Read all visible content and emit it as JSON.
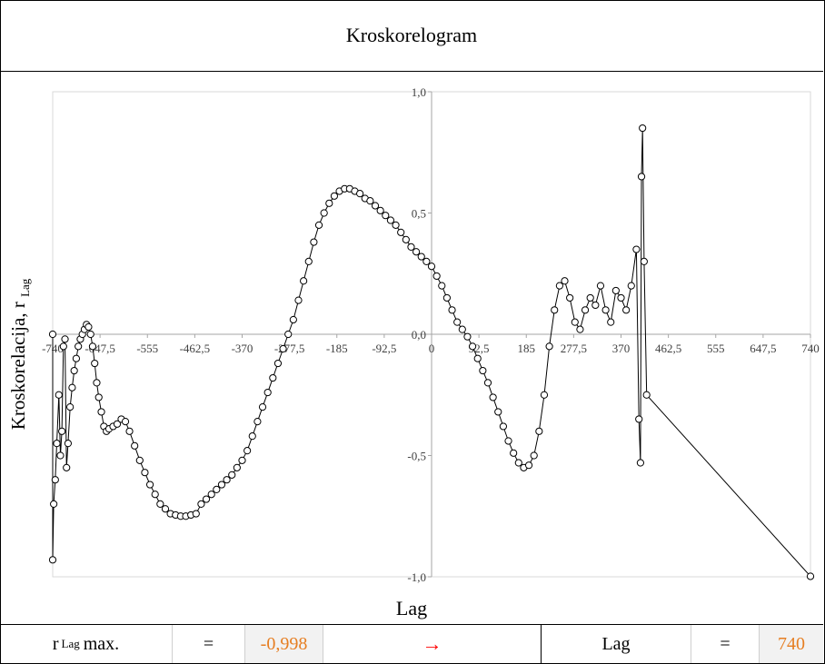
{
  "title": "Kroskorelogram",
  "ylabel": "Kroskorelacija, r",
  "ylabel_sub": "Lag",
  "xlabel": "Lag",
  "stats": {
    "r_label": "r",
    "r_sub": "Lag",
    "r_label_suffix": "max.",
    "eq1": "=",
    "r_value": "-0,998",
    "arrow": "→",
    "lag_label": "Lag",
    "eq2": "=",
    "lag_value": "740"
  },
  "colors": {
    "marker_fill": "#ffffff",
    "marker_stroke": "#000000",
    "line": "#000000",
    "value_text": "#e67e22",
    "arrow": "#ff0000",
    "grid_axis": "#a6a6a6"
  },
  "chart_data": {
    "type": "scatter",
    "title": "Kroskorelogram",
    "xlabel": "Lag",
    "ylabel": "Kroskorelacija, r Lag",
    "xlim": [
      -740,
      740
    ],
    "ylim": [
      -1.0,
      1.0
    ],
    "x_ticks": [
      "-740",
      "-647,5",
      "-555",
      "-462,5",
      "-370",
      "-277,5",
      "-185",
      "-92,5",
      "0",
      "92,5",
      "185",
      "277,5",
      "370",
      "462,5",
      "555",
      "647,5",
      "740"
    ],
    "y_ticks": [
      "-1,0",
      "-0,5",
      "0,0",
      "0,5",
      "1,0"
    ],
    "grid": false,
    "series": [
      {
        "points": [
          [
            -740,
            0.0
          ],
          [
            -740,
            -0.93
          ],
          [
            -738,
            -0.7
          ],
          [
            -735,
            -0.6
          ],
          [
            -732,
            -0.45
          ],
          [
            -728,
            -0.25
          ],
          [
            -725,
            -0.5
          ],
          [
            -722,
            -0.4
          ],
          [
            -719,
            -0.05
          ],
          [
            -716,
            -0.02
          ],
          [
            -713,
            -0.55
          ],
          [
            -710,
            -0.45
          ],
          [
            -706,
            -0.3
          ],
          [
            -702,
            -0.22
          ],
          [
            -698,
            -0.15
          ],
          [
            -694,
            -0.1
          ],
          [
            -690,
            -0.05
          ],
          [
            -686,
            -0.02
          ],
          [
            -682,
            0.0
          ],
          [
            -678,
            0.02
          ],
          [
            -674,
            0.04
          ],
          [
            -670,
            0.03
          ],
          [
            -666,
            0.0
          ],
          [
            -662,
            -0.05
          ],
          [
            -658,
            -0.12
          ],
          [
            -654,
            -0.2
          ],
          [
            -650,
            -0.26
          ],
          [
            -645,
            -0.32
          ],
          [
            -640,
            -0.38
          ],
          [
            -635,
            -0.4
          ],
          [
            -630,
            -0.39
          ],
          [
            -622,
            -0.38
          ],
          [
            -614,
            -0.37
          ],
          [
            -606,
            -0.35
          ],
          [
            -598,
            -0.36
          ],
          [
            -590,
            -0.4
          ],
          [
            -580,
            -0.46
          ],
          [
            -570,
            -0.52
          ],
          [
            -560,
            -0.57
          ],
          [
            -550,
            -0.62
          ],
          [
            -540,
            -0.66
          ],
          [
            -530,
            -0.7
          ],
          [
            -520,
            -0.72
          ],
          [
            -510,
            -0.74
          ],
          [
            -500,
            -0.745
          ],
          [
            -490,
            -0.75
          ],
          [
            -480,
            -0.75
          ],
          [
            -470,
            -0.745
          ],
          [
            -460,
            -0.74
          ],
          [
            -450,
            -0.7
          ],
          [
            -440,
            -0.68
          ],
          [
            -430,
            -0.66
          ],
          [
            -420,
            -0.64
          ],
          [
            -410,
            -0.62
          ],
          [
            -400,
            -0.6
          ],
          [
            -390,
            -0.58
          ],
          [
            -380,
            -0.55
          ],
          [
            -370,
            -0.52
          ],
          [
            -360,
            -0.48
          ],
          [
            -350,
            -0.42
          ],
          [
            -340,
            -0.36
          ],
          [
            -330,
            -0.3
          ],
          [
            -320,
            -0.24
          ],
          [
            -310,
            -0.18
          ],
          [
            -300,
            -0.12
          ],
          [
            -290,
            -0.06
          ],
          [
            -280,
            0.0
          ],
          [
            -270,
            0.06
          ],
          [
            -260,
            0.14
          ],
          [
            -250,
            0.22
          ],
          [
            -240,
            0.3
          ],
          [
            -230,
            0.38
          ],
          [
            -220,
            0.45
          ],
          [
            -210,
            0.5
          ],
          [
            -200,
            0.54
          ],
          [
            -190,
            0.57
          ],
          [
            -180,
            0.59
          ],
          [
            -170,
            0.6
          ],
          [
            -160,
            0.6
          ],
          [
            -150,
            0.59
          ],
          [
            -140,
            0.58
          ],
          [
            -130,
            0.56
          ],
          [
            -120,
            0.55
          ],
          [
            -110,
            0.53
          ],
          [
            -100,
            0.51
          ],
          [
            -90,
            0.49
          ],
          [
            -80,
            0.47
          ],
          [
            -70,
            0.45
          ],
          [
            -60,
            0.42
          ],
          [
            -50,
            0.39
          ],
          [
            -40,
            0.36
          ],
          [
            -30,
            0.34
          ],
          [
            -20,
            0.32
          ],
          [
            -10,
            0.3
          ],
          [
            0,
            0.28
          ],
          [
            10,
            0.24
          ],
          [
            20,
            0.2
          ],
          [
            30,
            0.15
          ],
          [
            40,
            0.1
          ],
          [
            50,
            0.05
          ],
          [
            60,
            0.02
          ],
          [
            70,
            -0.01
          ],
          [
            80,
            -0.05
          ],
          [
            90,
            -0.1
          ],
          [
            100,
            -0.15
          ],
          [
            110,
            -0.2
          ],
          [
            120,
            -0.26
          ],
          [
            130,
            -0.32
          ],
          [
            140,
            -0.38
          ],
          [
            150,
            -0.44
          ],
          [
            160,
            -0.49
          ],
          [
            170,
            -0.53
          ],
          [
            180,
            -0.55
          ],
          [
            190,
            -0.54
          ],
          [
            200,
            -0.5
          ],
          [
            210,
            -0.4
          ],
          [
            220,
            -0.25
          ],
          [
            230,
            -0.05
          ],
          [
            240,
            0.1
          ],
          [
            250,
            0.2
          ],
          [
            260,
            0.22
          ],
          [
            270,
            0.15
          ],
          [
            280,
            0.05
          ],
          [
            290,
            0.02
          ],
          [
            300,
            0.1
          ],
          [
            310,
            0.15
          ],
          [
            320,
            0.12
          ],
          [
            330,
            0.2
          ],
          [
            340,
            0.1
          ],
          [
            350,
            0.05
          ],
          [
            360,
            0.18
          ],
          [
            370,
            0.15
          ],
          [
            380,
            0.1
          ],
          [
            390,
            0.2
          ],
          [
            400,
            0.35
          ],
          [
            405,
            -0.35
          ],
          [
            408,
            -0.53
          ],
          [
            410,
            0.65
          ],
          [
            412,
            0.85
          ],
          [
            415,
            0.3
          ],
          [
            420,
            -0.25
          ],
          [
            740,
            -0.998
          ]
        ]
      }
    ]
  }
}
